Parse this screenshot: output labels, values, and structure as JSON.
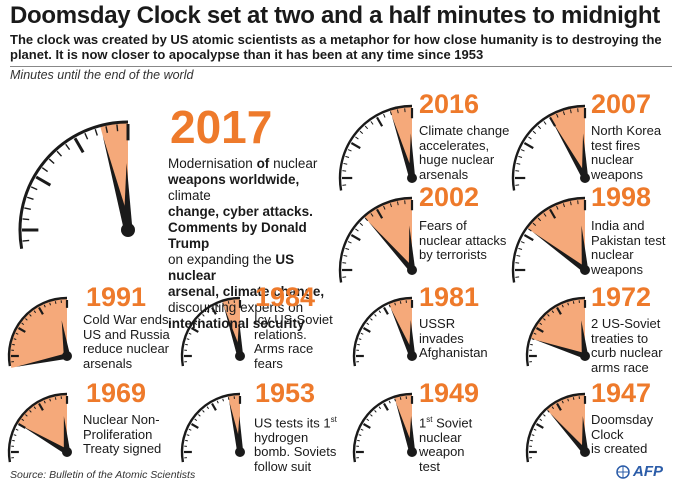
{
  "title": "Doomsday Clock  set at two and a half minutes to midnight",
  "subtitle": "The clock was created by US atomic scientists as a metaphor for how close humanity is to destroying the planet. It is now closer to apocalypse than it has been at any time since 1953",
  "minutes_label": "Minutes until the end of the world",
  "source": "Source: Bulletin of the Atomic Scientists",
  "credit": "AFP",
  "colors": {
    "accent": "#ee7a2b",
    "wedge": "#f5a97a",
    "ink": "#1a1a1a",
    "credit": "#2b5ca8"
  },
  "events": [
    {
      "year": "2017",
      "minutes": 2.5,
      "lines": [
        "Modernisation of nuclear",
        "weapons worldwide, climate",
        "change, cyber attacks.",
        "Comments by Donald Trump",
        "on expanding the US nuclear",
        "arsenal, climate change,",
        "discounting experts on",
        "international security"
      ]
    },
    {
      "year": "2016",
      "minutes": 3,
      "lines": [
        "Climate change",
        "accelerates,",
        "huge nuclear",
        "arsenals"
      ]
    },
    {
      "year": "2007",
      "minutes": 5,
      "lines": [
        "North Korea",
        "test fires",
        "nuclear",
        "weapons"
      ]
    },
    {
      "year": "2002",
      "minutes": 7,
      "lines": [
        "Fears of",
        "nuclear attacks",
        "by terrorists"
      ]
    },
    {
      "year": "1998",
      "minutes": 9,
      "lines": [
        "India and",
        "Pakistan test",
        "nuclear",
        "weapons"
      ]
    },
    {
      "year": "1991",
      "minutes": 17,
      "lines": [
        "Cold War ends.",
        "US and Russia",
        "reduce nuclear",
        "arsenals"
      ]
    },
    {
      "year": "1984",
      "minutes": 3,
      "lines": [
        "Icy US-Soviet",
        "relations.",
        "Arms race",
        "fears"
      ]
    },
    {
      "year": "1981",
      "minutes": 4,
      "lines": [
        "USSR",
        "invades",
        "Afghanistan"
      ]
    },
    {
      "year": "1972",
      "minutes": 12,
      "lines": [
        "2 US-Soviet",
        "treaties to",
        "curb nuclear",
        "arms race"
      ]
    },
    {
      "year": "1969",
      "minutes": 10,
      "lines": [
        "Nuclear Non-",
        "Proliferation",
        "Treaty signed"
      ]
    },
    {
      "year": "1953",
      "minutes": 2,
      "lines": [
        "US tests its 1st",
        "hydrogen",
        "bomb. Soviets",
        "follow suit"
      ]
    },
    {
      "year": "1949",
      "minutes": 3,
      "lines": [
        "1st Soviet",
        "nuclear",
        "weapon",
        "test"
      ]
    },
    {
      "year": "1947",
      "minutes": 7,
      "lines": [
        "Doomsday",
        "Clock",
        "is created"
      ]
    }
  ]
}
